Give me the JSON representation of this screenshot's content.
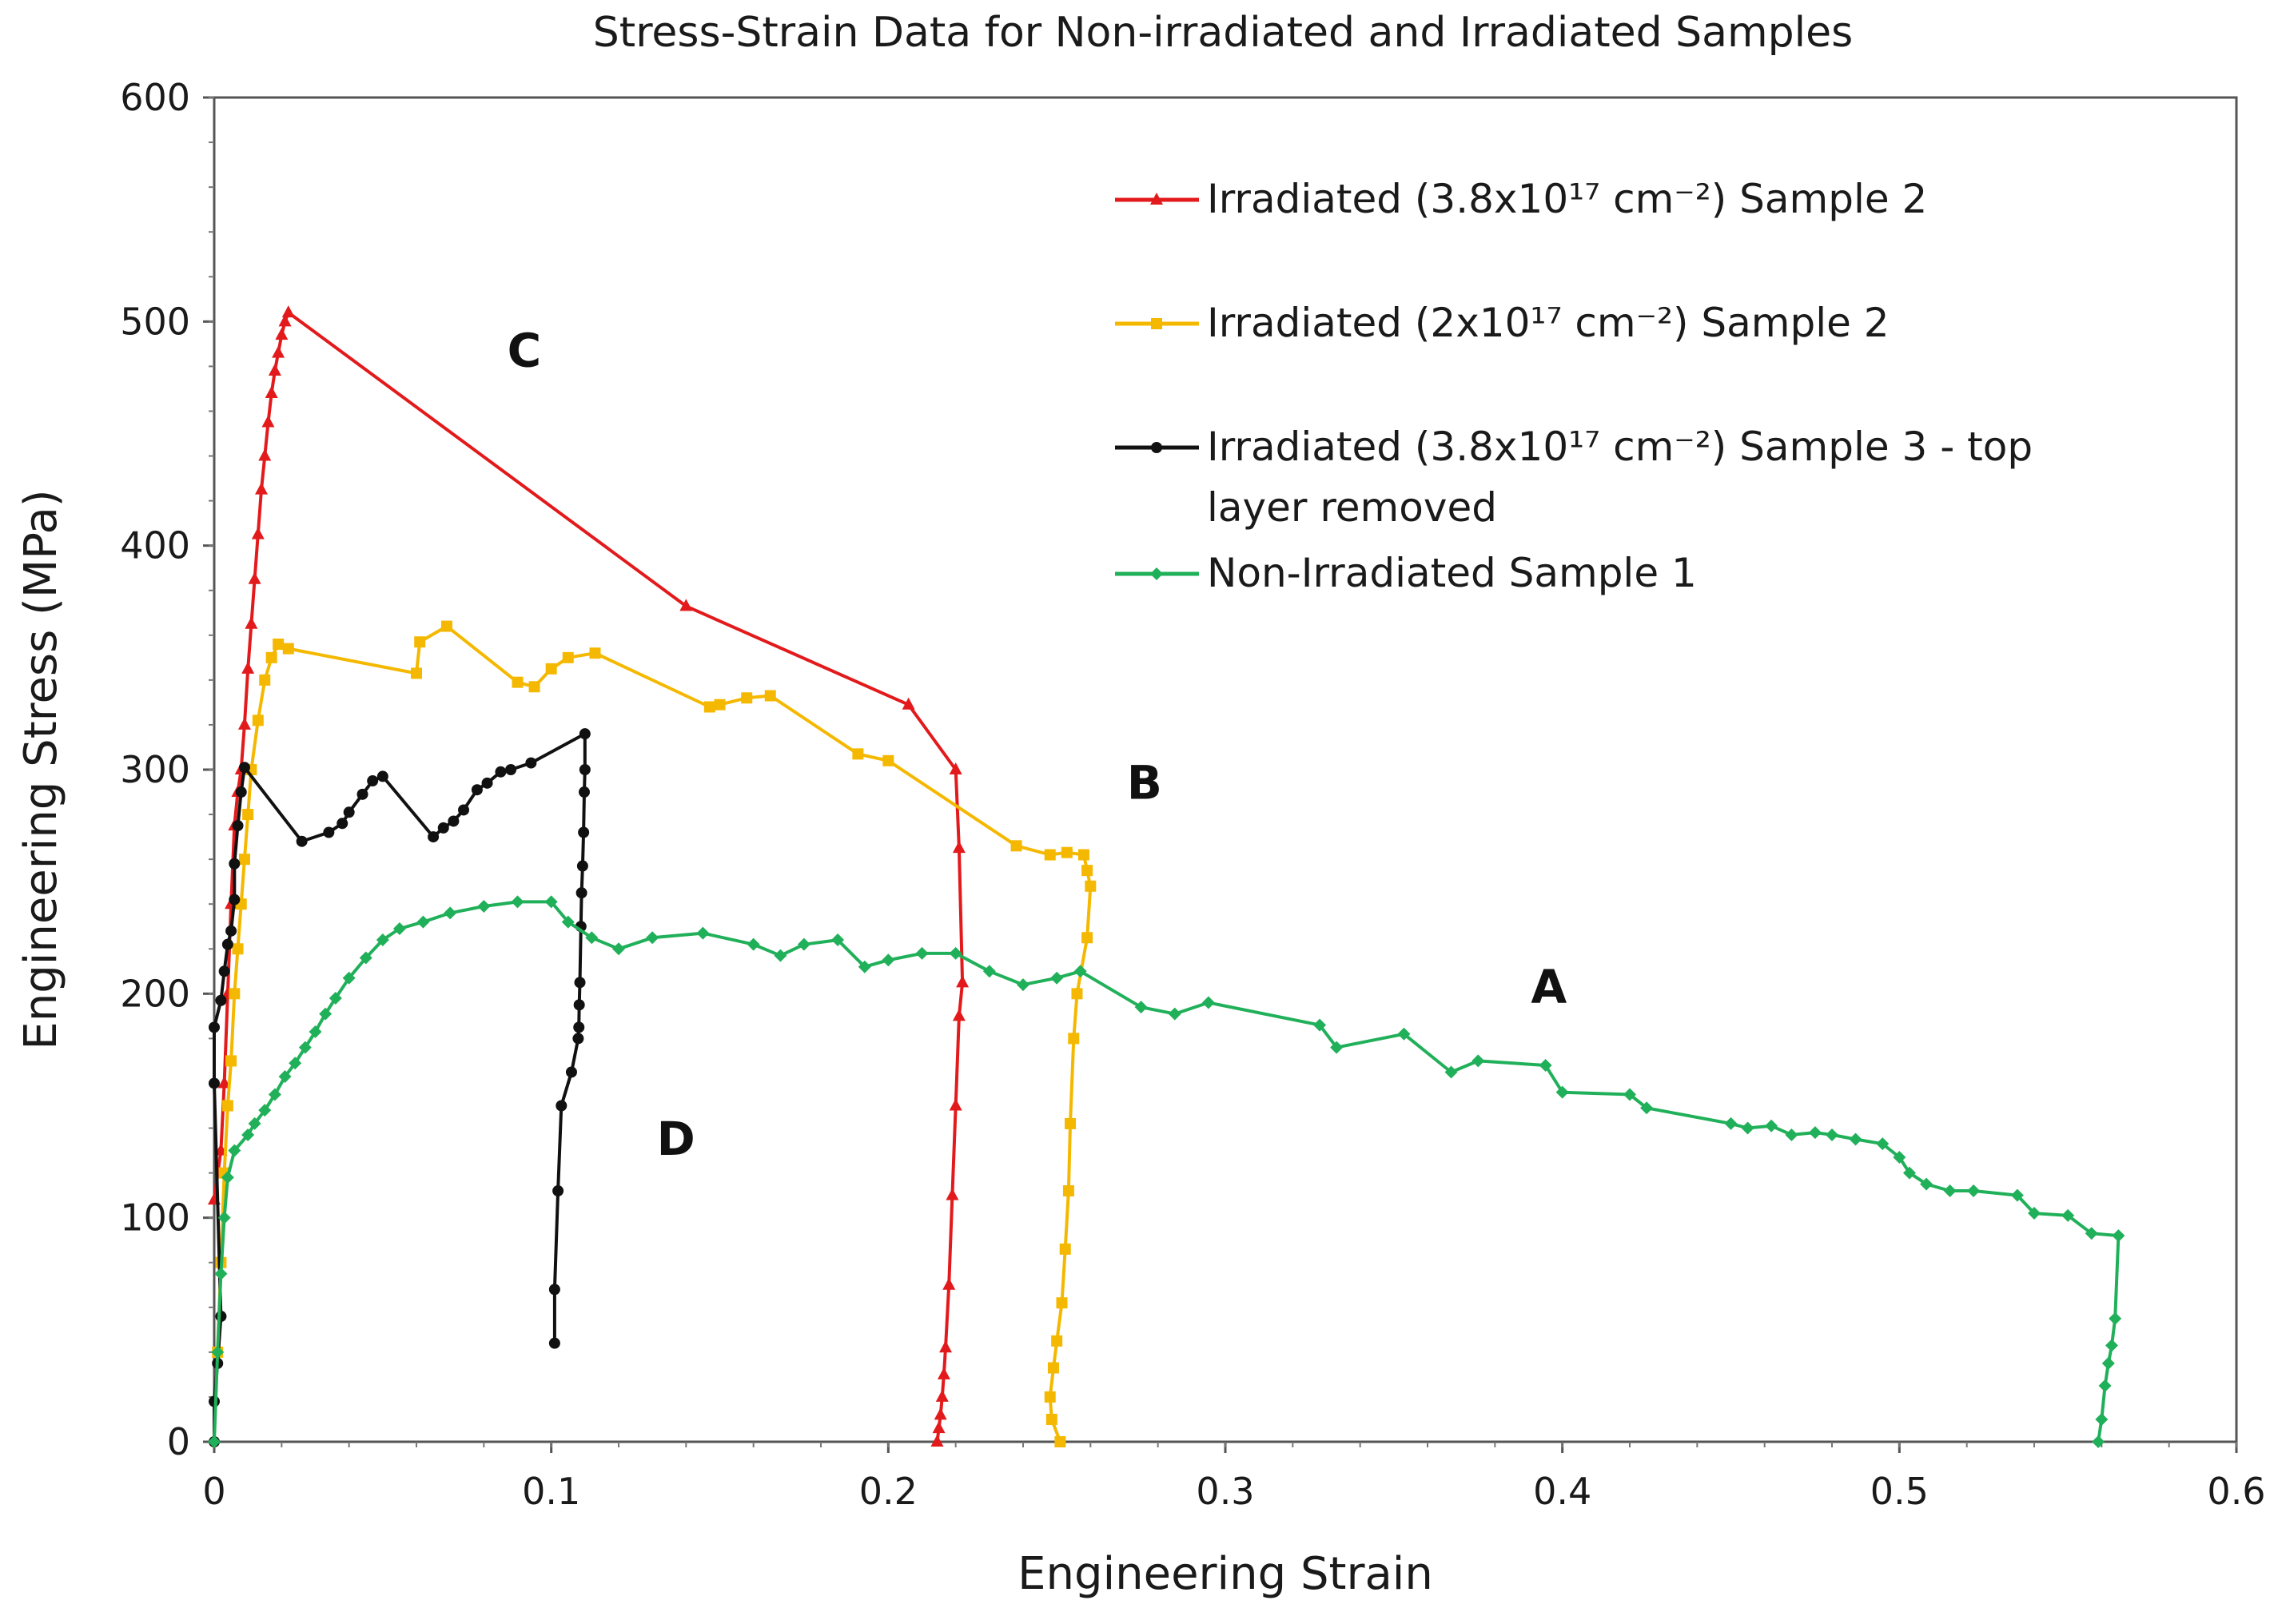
{
  "chart_data": {
    "type": "line",
    "title": "Stress-Strain Data for Non-irradiated and Irradiated Samples",
    "xlabel": "Engineering Strain",
    "ylabel": "Engineering Stress (MPa)",
    "xlim": [
      0,
      0.6
    ],
    "ylim": [
      0,
      600
    ],
    "x_ticks": [
      "0",
      "0.1",
      "0.2",
      "0.3",
      "0.4",
      "0.5",
      "0.6"
    ],
    "y_ticks": [
      "0",
      "100",
      "200",
      "300",
      "400",
      "500",
      "600"
    ],
    "x_tick_values": [
      0,
      0.1,
      0.2,
      0.3,
      0.4,
      0.5,
      0.6
    ],
    "y_tick_values": [
      0,
      100,
      200,
      300,
      400,
      500,
      600
    ],
    "grid": false,
    "legend_position": "top-right",
    "series": [
      {
        "name": "Irradiated (3.8x10¹⁷ cm⁻²) Sample 2",
        "legend_lines": [
          "Irradiated (3.8x10¹⁷ cm⁻²) Sample 2"
        ],
        "color": "#e31a1c",
        "marker": "triangle",
        "points": [
          [
            0.0,
            108
          ],
          [
            0.002,
            130
          ],
          [
            0.003,
            160
          ],
          [
            0.004,
            200
          ],
          [
            0.005,
            240
          ],
          [
            0.006,
            275
          ],
          [
            0.007,
            290
          ],
          [
            0.008,
            300
          ],
          [
            0.009,
            320
          ],
          [
            0.01,
            345
          ],
          [
            0.011,
            365
          ],
          [
            0.012,
            385
          ],
          [
            0.013,
            405
          ],
          [
            0.014,
            425
          ],
          [
            0.015,
            440
          ],
          [
            0.016,
            455
          ],
          [
            0.017,
            468
          ],
          [
            0.018,
            478
          ],
          [
            0.019,
            486
          ],
          [
            0.02,
            494
          ],
          [
            0.021,
            500
          ],
          [
            0.022,
            504
          ],
          [
            0.14,
            373
          ],
          [
            0.206,
            329
          ],
          [
            0.22,
            300
          ],
          [
            0.221,
            265
          ],
          [
            0.222,
            205
          ],
          [
            0.221,
            190
          ],
          [
            0.22,
            150
          ],
          [
            0.219,
            110
          ],
          [
            0.218,
            70
          ],
          [
            0.217,
            42
          ],
          [
            0.2165,
            30
          ],
          [
            0.216,
            20
          ],
          [
            0.2155,
            12
          ],
          [
            0.215,
            6
          ],
          [
            0.2145,
            0
          ]
        ]
      },
      {
        "name": "Irradiated (2x10¹⁷ cm⁻²) Sample 2",
        "legend_lines": [
          "Irradiated (2x10¹⁷ cm⁻²) Sample 2"
        ],
        "color": "#f5b800",
        "marker": "square",
        "points": [
          [
            0.001,
            40
          ],
          [
            0.002,
            80
          ],
          [
            0.003,
            120
          ],
          [
            0.004,
            150
          ],
          [
            0.005,
            170
          ],
          [
            0.006,
            200
          ],
          [
            0.007,
            220
          ],
          [
            0.008,
            240
          ],
          [
            0.009,
            260
          ],
          [
            0.01,
            280
          ],
          [
            0.011,
            300
          ],
          [
            0.013,
            322
          ],
          [
            0.015,
            340
          ],
          [
            0.017,
            350
          ],
          [
            0.019,
            356
          ],
          [
            0.022,
            354
          ],
          [
            0.06,
            343
          ],
          [
            0.061,
            357
          ],
          [
            0.069,
            364
          ],
          [
            0.09,
            339
          ],
          [
            0.095,
            337
          ],
          [
            0.1,
            345
          ],
          [
            0.105,
            350
          ],
          [
            0.113,
            352
          ],
          [
            0.147,
            328
          ],
          [
            0.15,
            329
          ],
          [
            0.158,
            332
          ],
          [
            0.165,
            333
          ],
          [
            0.191,
            307
          ],
          [
            0.2,
            304
          ],
          [
            0.238,
            266
          ],
          [
            0.248,
            262
          ],
          [
            0.253,
            263
          ],
          [
            0.258,
            262
          ],
          [
            0.259,
            255
          ],
          [
            0.26,
            248
          ],
          [
            0.259,
            225
          ],
          [
            0.256,
            200
          ],
          [
            0.255,
            180
          ],
          [
            0.254,
            142
          ],
          [
            0.2535,
            112
          ],
          [
            0.2525,
            86
          ],
          [
            0.2515,
            62
          ],
          [
            0.25,
            45
          ],
          [
            0.249,
            33
          ],
          [
            0.248,
            20
          ],
          [
            0.2485,
            10
          ],
          [
            0.251,
            0
          ]
        ]
      },
      {
        "name": "Irradiated (3.8x10¹⁷ cm⁻²) Sample 3 - top layer removed",
        "legend_lines": [
          "Irradiated (3.8x10¹⁷ cm⁻²) Sample 3 - top",
          "layer removed"
        ],
        "color": "#111111",
        "marker": "circle",
        "points": [
          [
            0.0,
            0
          ],
          [
            0.0,
            18
          ],
          [
            0.001,
            35
          ],
          [
            0.002,
            56
          ],
          [
            0.0,
            160
          ],
          [
            0.0,
            185
          ],
          [
            0.002,
            197
          ],
          [
            0.003,
            210
          ],
          [
            0.004,
            222
          ],
          [
            0.005,
            228
          ],
          [
            0.006,
            242
          ],
          [
            0.006,
            258
          ],
          [
            0.007,
            275
          ],
          [
            0.008,
            290
          ],
          [
            0.009,
            301
          ],
          [
            0.026,
            268
          ],
          [
            0.034,
            272
          ],
          [
            0.038,
            276
          ],
          [
            0.04,
            281
          ],
          [
            0.044,
            289
          ],
          [
            0.047,
            295
          ],
          [
            0.05,
            297
          ],
          [
            0.065,
            270
          ],
          [
            0.068,
            274
          ],
          [
            0.071,
            277
          ],
          [
            0.074,
            282
          ],
          [
            0.078,
            291
          ],
          [
            0.081,
            294
          ],
          [
            0.085,
            299
          ],
          [
            0.088,
            300
          ],
          [
            0.094,
            303
          ],
          [
            0.11,
            316
          ],
          [
            0.11,
            300
          ],
          [
            0.1098,
            290
          ],
          [
            0.1096,
            272
          ],
          [
            0.1093,
            257
          ],
          [
            0.109,
            245
          ],
          [
            0.1088,
            230
          ],
          [
            0.1085,
            205
          ],
          [
            0.1083,
            195
          ],
          [
            0.1082,
            185
          ],
          [
            0.108,
            180
          ],
          [
            0.106,
            165
          ],
          [
            0.103,
            150
          ],
          [
            0.102,
            112
          ],
          [
            0.101,
            68
          ],
          [
            0.101,
            44
          ]
        ]
      },
      {
        "name": "Non-Irradiated Sample 1",
        "legend_lines": [
          "Non-Irradiated Sample 1"
        ],
        "color": "#21b05a",
        "marker": "diamond",
        "points": [
          [
            0.0,
            0
          ],
          [
            0.001,
            40
          ],
          [
            0.002,
            75
          ],
          [
            0.003,
            100
          ],
          [
            0.004,
            118
          ],
          [
            0.006,
            130
          ],
          [
            0.01,
            137
          ],
          [
            0.012,
            142
          ],
          [
            0.015,
            148
          ],
          [
            0.018,
            155
          ],
          [
            0.021,
            163
          ],
          [
            0.024,
            169
          ],
          [
            0.027,
            176
          ],
          [
            0.03,
            183
          ],
          [
            0.033,
            191
          ],
          [
            0.036,
            198
          ],
          [
            0.04,
            207
          ],
          [
            0.045,
            216
          ],
          [
            0.05,
            224
          ],
          [
            0.055,
            229
          ],
          [
            0.062,
            232
          ],
          [
            0.07,
            236
          ],
          [
            0.08,
            239
          ],
          [
            0.09,
            241
          ],
          [
            0.1,
            241
          ],
          [
            0.105,
            232
          ],
          [
            0.112,
            225
          ],
          [
            0.12,
            220
          ],
          [
            0.13,
            225
          ],
          [
            0.145,
            227
          ],
          [
            0.16,
            222
          ],
          [
            0.168,
            217
          ],
          [
            0.175,
            222
          ],
          [
            0.185,
            224
          ],
          [
            0.193,
            212
          ],
          [
            0.2,
            215
          ],
          [
            0.21,
            218
          ],
          [
            0.22,
            218
          ],
          [
            0.23,
            210
          ],
          [
            0.24,
            204
          ],
          [
            0.25,
            207
          ],
          [
            0.257,
            210
          ],
          [
            0.275,
            194
          ],
          [
            0.285,
            191
          ],
          [
            0.295,
            196
          ],
          [
            0.328,
            186
          ],
          [
            0.333,
            176
          ],
          [
            0.353,
            182
          ],
          [
            0.367,
            165
          ],
          [
            0.375,
            170
          ],
          [
            0.395,
            168
          ],
          [
            0.4,
            156
          ],
          [
            0.42,
            155
          ],
          [
            0.425,
            149
          ],
          [
            0.45,
            142
          ],
          [
            0.455,
            140
          ],
          [
            0.462,
            141
          ],
          [
            0.468,
            137
          ],
          [
            0.475,
            138
          ],
          [
            0.48,
            137
          ],
          [
            0.487,
            135
          ],
          [
            0.495,
            133
          ],
          [
            0.5,
            127
          ],
          [
            0.503,
            120
          ],
          [
            0.508,
            115
          ],
          [
            0.515,
            112
          ],
          [
            0.522,
            112
          ],
          [
            0.535,
            110
          ],
          [
            0.54,
            102
          ],
          [
            0.55,
            101
          ],
          [
            0.557,
            93
          ],
          [
            0.565,
            92
          ],
          [
            0.564,
            55
          ],
          [
            0.563,
            43
          ],
          [
            0.562,
            35
          ],
          [
            0.561,
            25
          ],
          [
            0.56,
            10
          ],
          [
            0.559,
            0
          ]
        ]
      }
    ],
    "annotations": [
      {
        "text": "C",
        "x": 0.092,
        "y": 480
      },
      {
        "text": "B",
        "x": 0.276,
        "y": 287
      },
      {
        "text": "A",
        "x": 0.396,
        "y": 196
      },
      {
        "text": "D",
        "x": 0.137,
        "y": 128
      }
    ]
  }
}
